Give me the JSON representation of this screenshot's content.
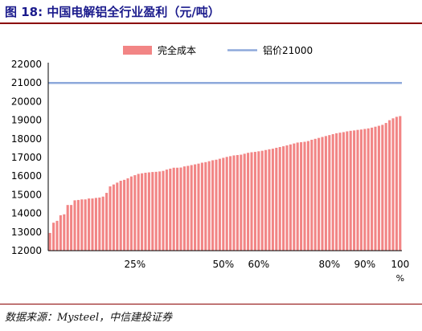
{
  "title": "图 18: 中国电解铝全行业盈利（元/吨）",
  "source": "数据来源：Mysteel，中信建投证券",
  "chart_data": {
    "type": "bar",
    "title": "图 18: 中国电解铝全行业盈利（元/吨）",
    "xlabel": "%",
    "ylabel": "",
    "ylim": [
      12000,
      22000
    ],
    "yticks": [
      12000,
      13000,
      14000,
      15000,
      16000,
      17000,
      18000,
      19000,
      20000,
      21000,
      22000
    ],
    "yticks_text": [
      "12000",
      "13000",
      "14000",
      "15000",
      "16000",
      "17000",
      "18000",
      "19000",
      "20000",
      "21000",
      "22000"
    ],
    "xticks": [
      {
        "label": "25%",
        "at": 25
      },
      {
        "label": "50%",
        "at": 50
      },
      {
        "label": "60%",
        "at": 60
      },
      {
        "label": "80%",
        "at": 80
      },
      {
        "label": "90%",
        "at": 90
      },
      {
        "label": "100",
        "at": 100
      }
    ],
    "x_unit_label": "%",
    "legend": {
      "placement": "top",
      "entries": [
        "完全成本",
        "铝价21000"
      ]
    },
    "series": [
      {
        "name": "完全成本",
        "kind": "bar",
        "color": "#f28585",
        "x": [
          1,
          2,
          3,
          4,
          5,
          6,
          7,
          8,
          9,
          10,
          11,
          12,
          13,
          14,
          15,
          16,
          17,
          18,
          19,
          20,
          21,
          22,
          23,
          24,
          25,
          26,
          27,
          28,
          29,
          30,
          31,
          32,
          33,
          34,
          35,
          36,
          37,
          38,
          39,
          40,
          41,
          42,
          43,
          44,
          45,
          46,
          47,
          48,
          49,
          50,
          51,
          52,
          53,
          54,
          55,
          56,
          57,
          58,
          59,
          60,
          61,
          62,
          63,
          64,
          65,
          66,
          67,
          68,
          69,
          70,
          71,
          72,
          73,
          74,
          75,
          76,
          77,
          78,
          79,
          80,
          81,
          82,
          83,
          84,
          85,
          86,
          87,
          88,
          89,
          90,
          91,
          92,
          93,
          94,
          95,
          96,
          97,
          98,
          99,
          100
        ],
        "values": [
          12950,
          13500,
          13600,
          13900,
          13950,
          14450,
          14450,
          14700,
          14720,
          14750,
          14750,
          14800,
          14800,
          14830,
          14850,
          14900,
          15100,
          15450,
          15550,
          15650,
          15750,
          15800,
          15880,
          15980,
          16050,
          16120,
          16150,
          16180,
          16200,
          16220,
          16230,
          16250,
          16280,
          16350,
          16400,
          16450,
          16450,
          16460,
          16520,
          16550,
          16590,
          16630,
          16670,
          16720,
          16750,
          16800,
          16850,
          16880,
          16930,
          16980,
          17030,
          17070,
          17110,
          17130,
          17150,
          17200,
          17250,
          17280,
          17300,
          17330,
          17360,
          17400,
          17440,
          17470,
          17520,
          17560,
          17600,
          17650,
          17700,
          17750,
          17800,
          17820,
          17840,
          17880,
          17950,
          18000,
          18050,
          18100,
          18150,
          18200,
          18250,
          18300,
          18330,
          18360,
          18400,
          18430,
          18450,
          18480,
          18500,
          18530,
          18560,
          18600,
          18650,
          18700,
          18750,
          18850,
          19000,
          19100,
          19180,
          19220
        ]
      },
      {
        "name": "铝价21000",
        "kind": "line",
        "color": "#8ea9db",
        "values": [
          21000
        ]
      }
    ]
  }
}
